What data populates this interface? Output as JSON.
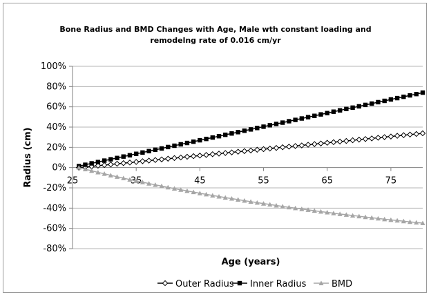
{
  "chart_data": {
    "type": "line",
    "title_line1": "Bone Radius and BMD Changes with Age, Male wth constant loading and",
    "title_line2": "remodelng rate of 0.016 cm/yr",
    "xlabel": "Age (years)",
    "ylabel": "Radius (cm)",
    "xlim": [
      25,
      80
    ],
    "ylim": [
      -80,
      100
    ],
    "x_ticks": [
      "25",
      "35",
      "45",
      "55",
      "65",
      "75"
    ],
    "x_tick_values": [
      25,
      35,
      45,
      55,
      65,
      75
    ],
    "y_ticks": [
      "100%",
      "80%",
      "60%",
      "40%",
      "20%",
      "0%",
      "-20%",
      "-40%",
      "-60%",
      "-80%"
    ],
    "y_tick_values": [
      100,
      80,
      60,
      40,
      20,
      0,
      -20,
      -40,
      -60,
      -80
    ],
    "grid": "horizontal",
    "legend_position": "bottom",
    "x_start": 26,
    "x_step": 1,
    "x_end": 80,
    "series": [
      {
        "name": "Outer Radius",
        "marker": "open-diamond",
        "color": "#000000",
        "values": [
          0,
          0.6,
          1.2,
          1.9,
          2.5,
          3.1,
          3.8,
          4.4,
          5,
          5.6,
          6.3,
          6.9,
          7.5,
          8.1,
          8.8,
          9.4,
          10,
          10.7,
          11.3,
          11.9,
          12.5,
          13.2,
          13.8,
          14.4,
          15,
          15.7,
          16.3,
          16.9,
          17.6,
          18.2,
          18.8,
          19.4,
          20.1,
          20.7,
          21.3,
          21.9,
          22.6,
          23.2,
          23.8,
          24.5,
          25.1,
          25.7,
          26.3,
          27,
          27.6,
          28.2,
          28.8,
          29.5,
          30.1,
          30.7,
          31.4,
          32,
          32.6,
          33.2,
          33.9
        ]
      },
      {
        "name": "Inner Radius",
        "marker": "filled-square",
        "color": "#000000",
        "values": [
          1.5,
          2.8,
          4.2,
          5.5,
          6.9,
          8.2,
          9.5,
          10.9,
          12.2,
          13.6,
          14.9,
          16.3,
          17.6,
          18.9,
          20.3,
          21.6,
          23,
          24.3,
          25.6,
          27,
          28.3,
          29.7,
          31,
          32.4,
          33.7,
          35,
          36.4,
          37.7,
          39.1,
          40.4,
          41.8,
          43.1,
          44.4,
          45.8,
          47.1,
          48.5,
          49.8,
          51.1,
          52.5,
          53.8,
          55.2,
          56.5,
          57.9,
          59.2,
          60.5,
          61.9,
          63.2,
          64.6,
          65.9,
          67.3,
          68.6,
          69.9,
          71.3,
          72.6,
          74
        ]
      },
      {
        "name": "BMD",
        "marker": "filled-triangle",
        "color": "#a6a6a6",
        "values": [
          0,
          -1.6,
          -3.1,
          -4.7,
          -6.1,
          -7.6,
          -9,
          -10.4,
          -11.8,
          -13.1,
          -14.4,
          -15.7,
          -17,
          -18.2,
          -19.5,
          -20.7,
          -21.9,
          -23,
          -24.2,
          -25.3,
          -26.4,
          -27.5,
          -28.5,
          -29.6,
          -30.6,
          -31.6,
          -32.6,
          -33.6,
          -34.6,
          -35.5,
          -36.4,
          -37.4,
          -38.3,
          -39.2,
          -40,
          -40.9,
          -41.7,
          -42.6,
          -43.4,
          -44.2,
          -45,
          -45.8,
          -46.5,
          -47.3,
          -48,
          -48.8,
          -49.5,
          -50.2,
          -50.9,
          -51.6,
          -52.2,
          -52.9,
          -53.6,
          -54.2,
          -54.8
        ]
      }
    ]
  }
}
